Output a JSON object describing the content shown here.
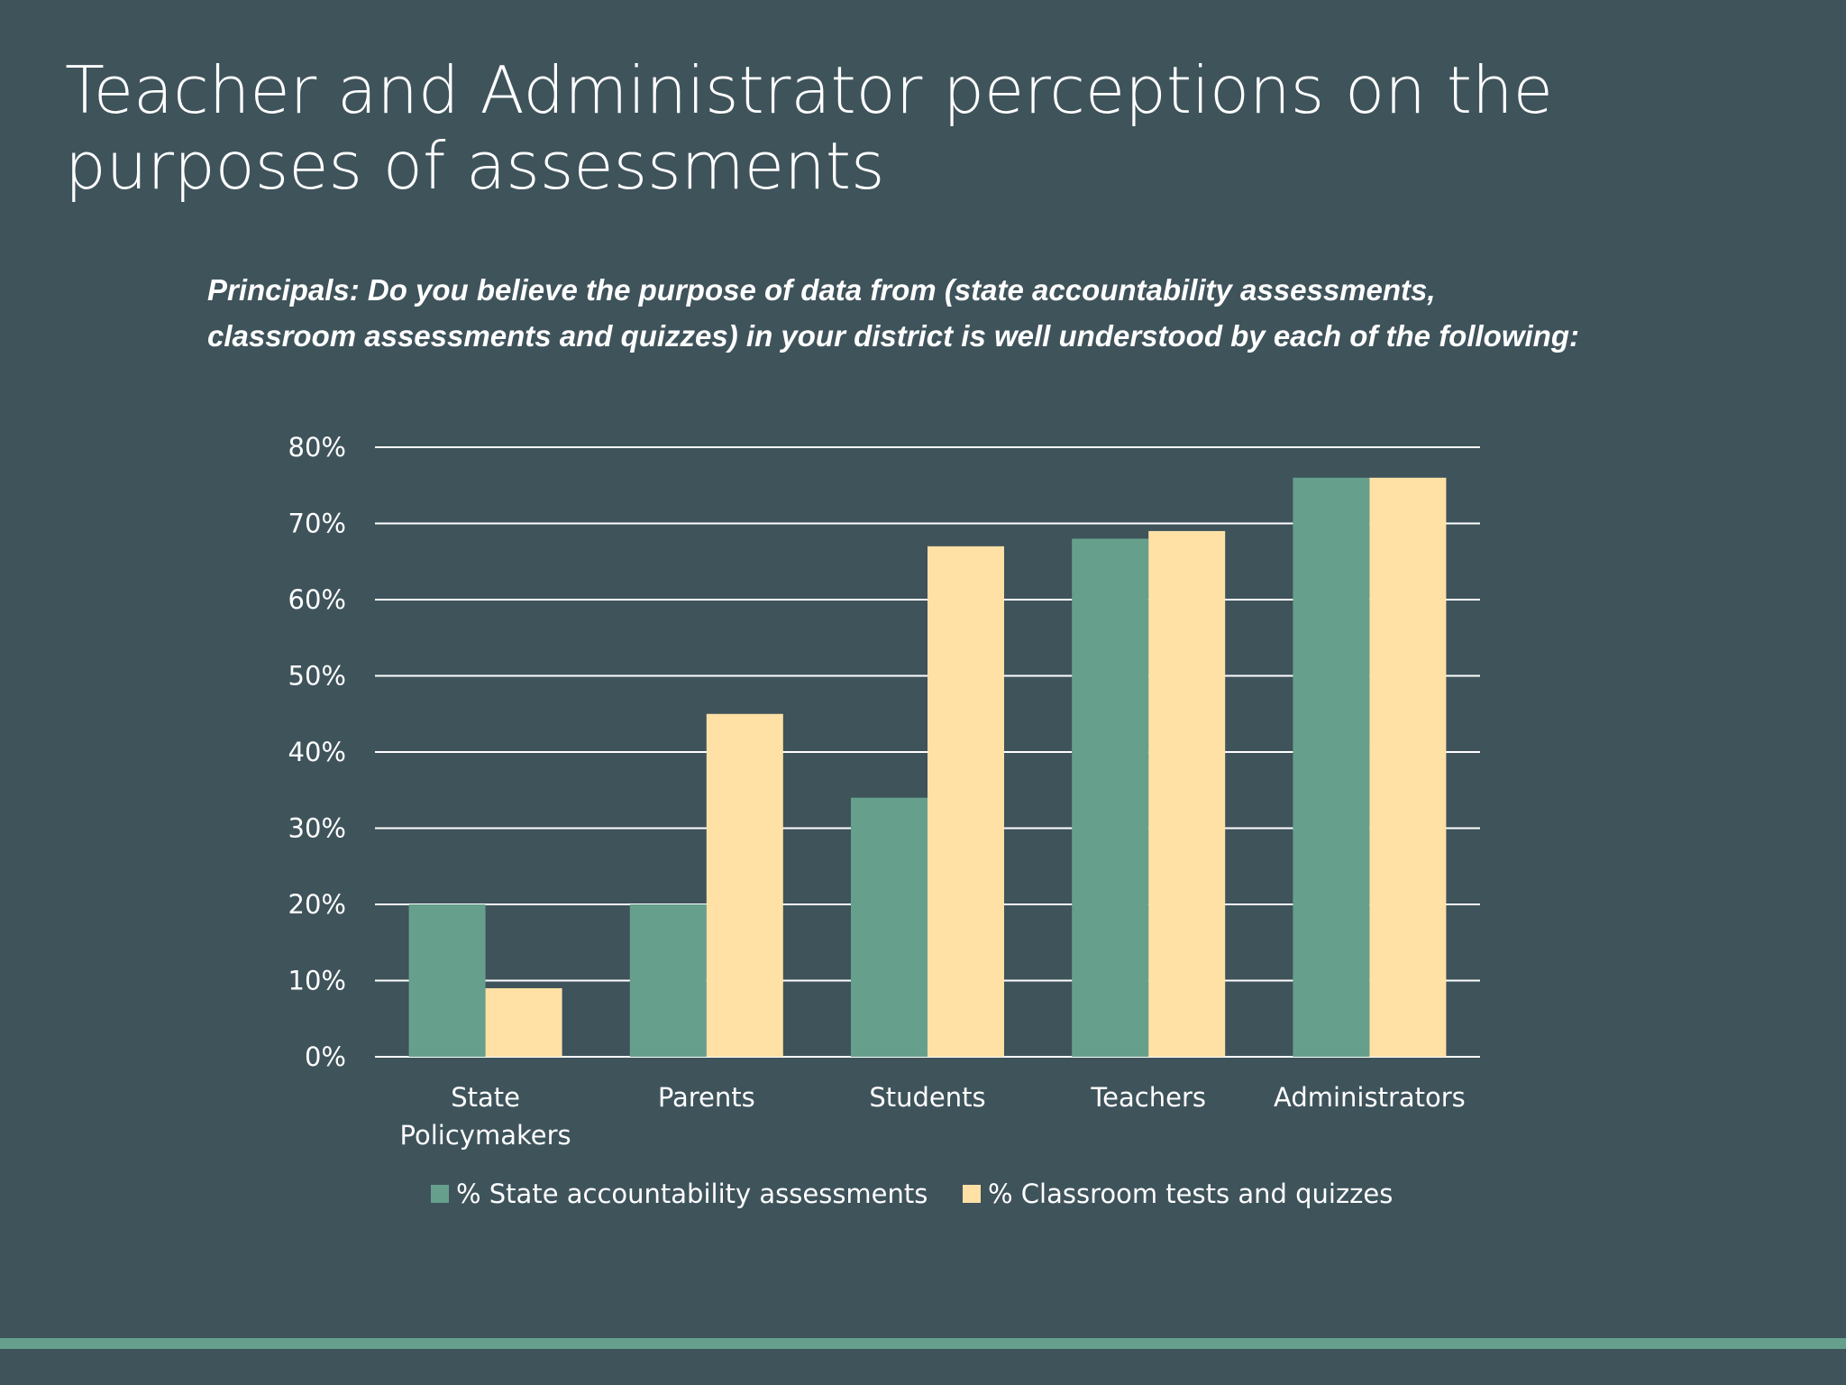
{
  "slide": {
    "title_lines": [
      "Teacher and Administrator perceptions on the",
      "purposes of assessments"
    ],
    "question_lines": [
      "Principals: Do you believe the purpose of data from (state accountability assessments,",
      "classroom assessments and quizzes) in your district is well understood by each of the following:"
    ]
  },
  "chart_data": {
    "type": "bar",
    "title": "",
    "xlabel": "",
    "ylabel": "",
    "categories": [
      "State Policymakers",
      "Parents",
      "Students",
      "Teachers",
      "Administrators"
    ],
    "category_label_lines": [
      [
        "State",
        "Policymakers"
      ],
      [
        "Parents"
      ],
      [
        "Students"
      ],
      [
        "Teachers"
      ],
      [
        "Administrators"
      ]
    ],
    "series": [
      {
        "name": "% State accountability assessments",
        "color": "#66a08c",
        "values": [
          20,
          20,
          34,
          68,
          76
        ]
      },
      {
        "name": "% Classroom tests and quizzes",
        "color": "#ffe1a6",
        "values": [
          9,
          45,
          67,
          69,
          76
        ]
      }
    ],
    "ylim": [
      0,
      80
    ],
    "yticks": [
      0,
      10,
      20,
      30,
      40,
      50,
      60,
      70,
      80
    ],
    "ytick_labels": [
      "0%",
      "10%",
      "20%",
      "30%",
      "40%",
      "50%",
      "60%",
      "70%",
      "80%"
    ],
    "grid": true,
    "legend_position": "bottom"
  },
  "colors": {
    "background": "#3f535b",
    "accent": "#66a08c",
    "text": "#ffffff"
  }
}
